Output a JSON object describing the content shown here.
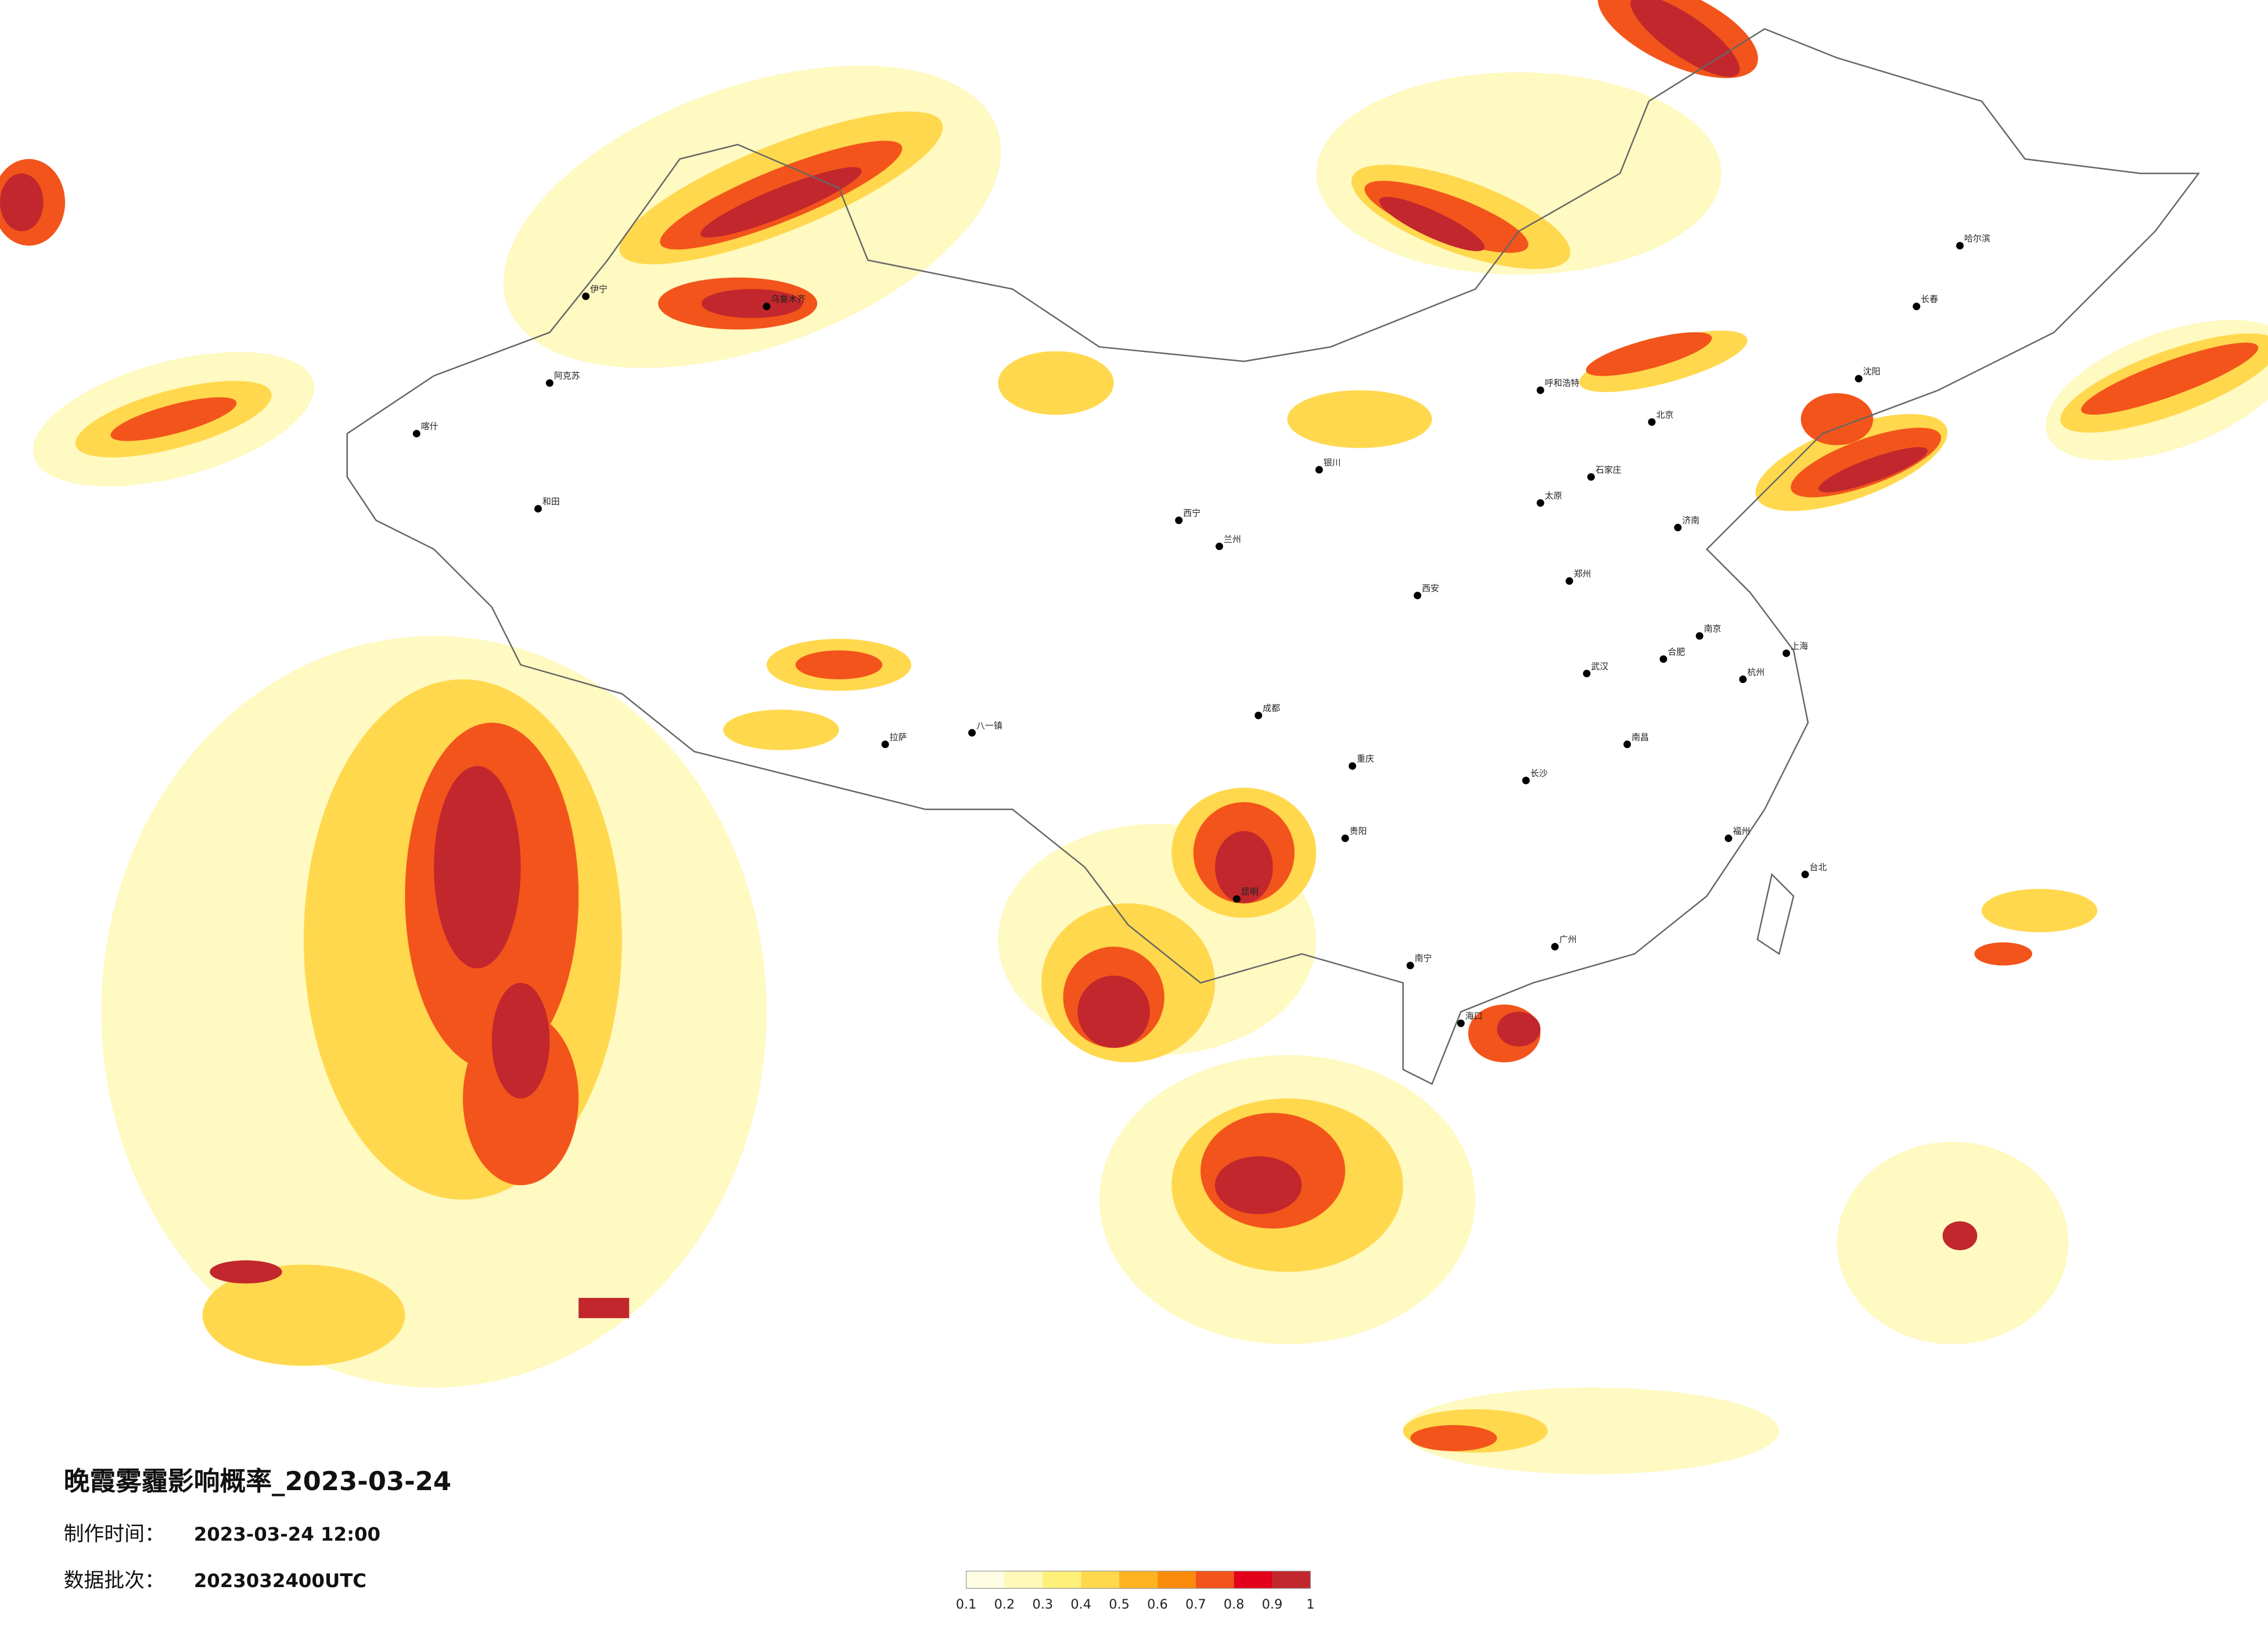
{
  "title": "晚霞雾霾影响概率_2023-03-24",
  "production_time": {
    "label": "制作时间：",
    "value": "2023-03-24 12:00"
  },
  "data_batch": {
    "label": "数据批次：",
    "value": "2023032400UTC"
  },
  "legend": {
    "ticks": [
      "0.1",
      "0.2",
      "0.3",
      "0.4",
      "0.5",
      "0.6",
      "0.7",
      "0.8",
      "0.9",
      "1"
    ],
    "colors": [
      "#fffde4",
      "#fff8b8",
      "#fff07a",
      "#ffd84d",
      "#ffb41f",
      "#fb8b0c",
      "#f2541b",
      "#e3001b",
      "#c1272d"
    ]
  },
  "cities": [
    "乌鲁木齐",
    "伊宁",
    "阿克苏",
    "喀什",
    "和田",
    "拉萨",
    "八一镇",
    "西宁",
    "兰州",
    "银川",
    "呼和浩特",
    "北京",
    "石家庄",
    "太原",
    "济南",
    "郑州",
    "西安",
    "成都",
    "重庆",
    "贵阳",
    "昆明",
    "南宁",
    "广州",
    "长沙",
    "武汉",
    "南昌",
    "杭州",
    "上海",
    "南京",
    "合肥",
    "福州",
    "海口",
    "哈尔滨",
    "长春",
    "沈阳",
    "台北"
  ]
}
